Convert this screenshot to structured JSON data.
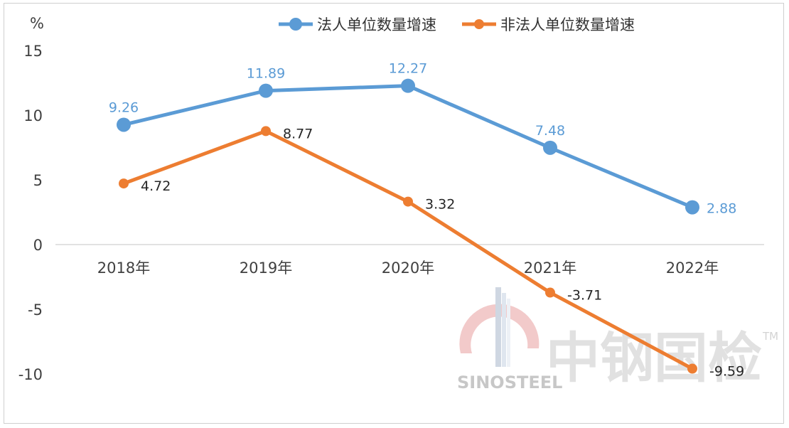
{
  "chart_data": {
    "type": "line",
    "unit_label": "%",
    "categories": [
      "2018年",
      "2019年",
      "2020年",
      "2021年",
      "2022年"
    ],
    "ylim": [
      -10,
      15
    ],
    "yticks": [
      "15",
      "10",
      "5",
      "0",
      "-5",
      "-10"
    ],
    "grid": false,
    "legend_position": "top",
    "series": [
      {
        "name": "法人单位数量增速",
        "color": "#5b9bd5",
        "values": [
          9.26,
          11.89,
          12.27,
          7.48,
          2.88
        ],
        "labels": [
          "9.26",
          "11.89",
          "12.27",
          "7.48",
          "2.88"
        ]
      },
      {
        "name": "非法人单位数量增速",
        "color": "#ed7d31",
        "values": [
          4.72,
          8.77,
          3.32,
          -3.71,
          -9.59
        ],
        "labels": [
          "4.72",
          "8.77",
          "3.32",
          "-3.71",
          "-9.59"
        ]
      }
    ]
  },
  "watermark": {
    "text": "中钢国检",
    "brand": "SINOSTEEL",
    "trademark": "TM"
  }
}
